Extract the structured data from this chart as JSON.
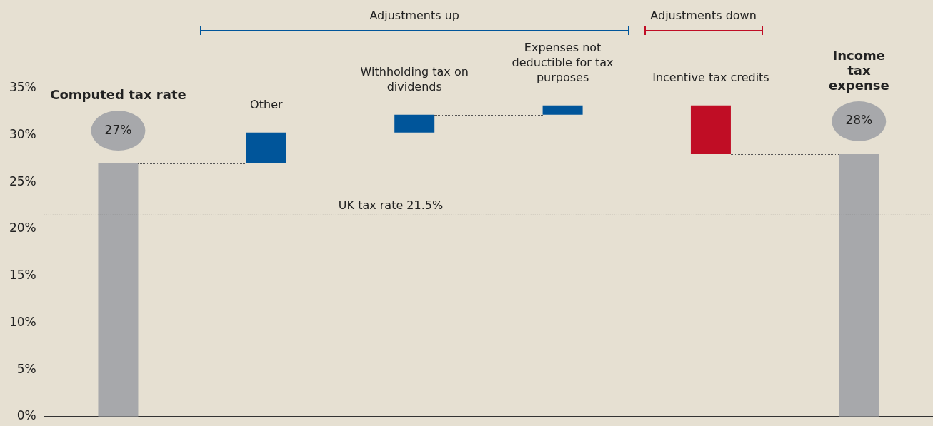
{
  "chart_data": {
    "type": "bar",
    "categories": [
      "Computed tax rate",
      "Other",
      "Withholding tax on dividends",
      "Expenses not deductible for tax purposes",
      "Incentive tax credits",
      "Income tax expense"
    ],
    "values": [
      27,
      3.3,
      1.9,
      1.0,
      -5.2,
      28
    ],
    "base": [
      0,
      27,
      30.3,
      32.2,
      33.2,
      0
    ],
    "colors": [
      "#a7a8ab",
      "#00559a",
      "#00559a",
      "#00559a",
      "#c00d25",
      "#a7a8ab"
    ],
    "value_labels": [
      "27%",
      null,
      null,
      null,
      null,
      "28%"
    ],
    "ylim": [
      0,
      35
    ],
    "yticks": [
      {
        "value": 0,
        "label": "0%"
      },
      {
        "value": 5,
        "label": "5%"
      },
      {
        "value": 10,
        "label": "10%"
      },
      {
        "value": 15,
        "label": "15%"
      },
      {
        "value": 20,
        "label": "20%"
      },
      {
        "value": 25,
        "label": "25%"
      },
      {
        "value": 30,
        "label": "30%"
      },
      {
        "value": 35,
        "label": "35%"
      }
    ],
    "ref_lines": [
      {
        "axis": "y",
        "value": 21.5,
        "label": "UK tax rate 21.5%",
        "line_style": "dotted",
        "color": "#555555"
      }
    ],
    "annotations": [
      "Adjustments up",
      "Adjustments down"
    ],
    "grid": false,
    "legend": false
  }
}
